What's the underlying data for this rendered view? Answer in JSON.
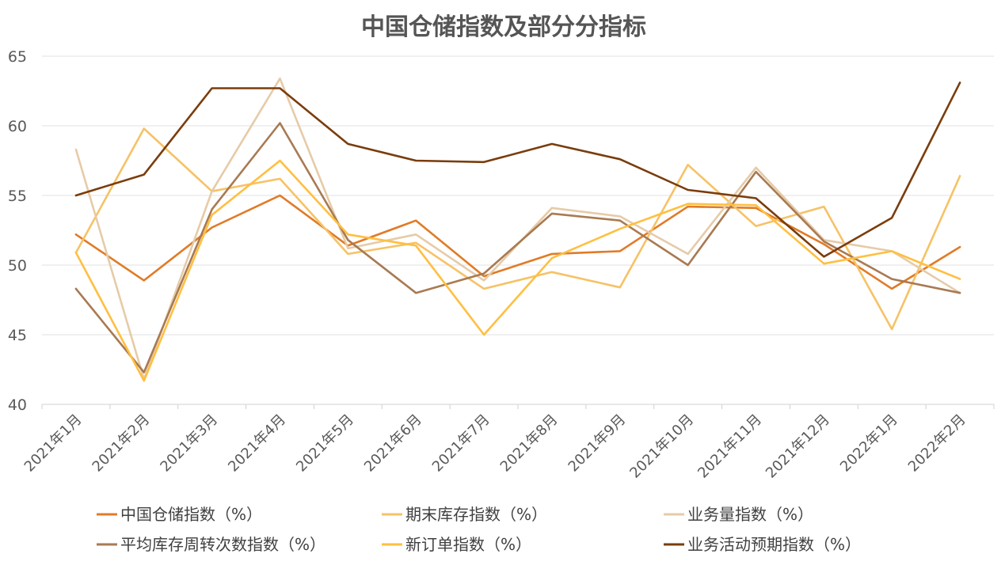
{
  "chart_data": {
    "type": "line",
    "title": "中国仓储指数及部分分指标",
    "xlabel": "",
    "ylabel": "",
    "categories": [
      "2021年1月",
      "2021年2月",
      "2021年3月",
      "2021年4月",
      "2021年5月",
      "2021年6月",
      "2021年7月",
      "2021年8月",
      "2021年9月",
      "2021年10月",
      "2021年11月",
      "2021年12月",
      "2022年1月",
      "2022年2月"
    ],
    "ylim": [
      40,
      65
    ],
    "yticks": [
      40,
      45,
      50,
      55,
      60,
      65
    ],
    "grid": true,
    "legend_position": "bottom",
    "series": [
      {
        "name": "中国仓储指数（%）",
        "color": "#E07B27",
        "values": [
          52.2,
          48.9,
          52.7,
          55.0,
          51.4,
          53.2,
          49.2,
          50.8,
          51.0,
          54.2,
          54.1,
          51.5,
          48.3,
          51.3
        ]
      },
      {
        "name": "期末库存指数（%）",
        "color": "#F6C266",
        "values": [
          50.9,
          59.8,
          55.3,
          56.2,
          50.8,
          51.6,
          48.3,
          49.5,
          48.4,
          57.2,
          52.8,
          54.2,
          45.4,
          56.4
        ]
      },
      {
        "name": "业务量指数（%）",
        "color": "#E6CBA8",
        "values": [
          58.3,
          41.8,
          55.3,
          63.4,
          51.2,
          52.2,
          48.9,
          54.1,
          53.5,
          50.8,
          57.0,
          51.8,
          51.0,
          48.0
        ]
      },
      {
        "name": "平均库存周转次数指数（%）",
        "color": "#A87A52",
        "values": [
          48.3,
          42.3,
          54.0,
          60.2,
          51.8,
          48.0,
          49.4,
          53.7,
          53.2,
          50.0,
          56.7,
          51.7,
          49.0,
          48.0
        ]
      },
      {
        "name": "新订单指数（%）",
        "color": "#FFBF40",
        "values": [
          50.9,
          41.7,
          53.6,
          57.5,
          52.2,
          51.4,
          45.0,
          50.5,
          52.6,
          54.4,
          54.3,
          50.1,
          51.0,
          49.0
        ]
      },
      {
        "name": "业务活动预期指数（%）",
        "color": "#7A3D0C",
        "values": [
          55.0,
          56.5,
          62.7,
          62.7,
          58.7,
          57.5,
          57.4,
          58.7,
          57.6,
          55.4,
          54.8,
          50.6,
          53.4,
          63.1
        ]
      }
    ]
  }
}
